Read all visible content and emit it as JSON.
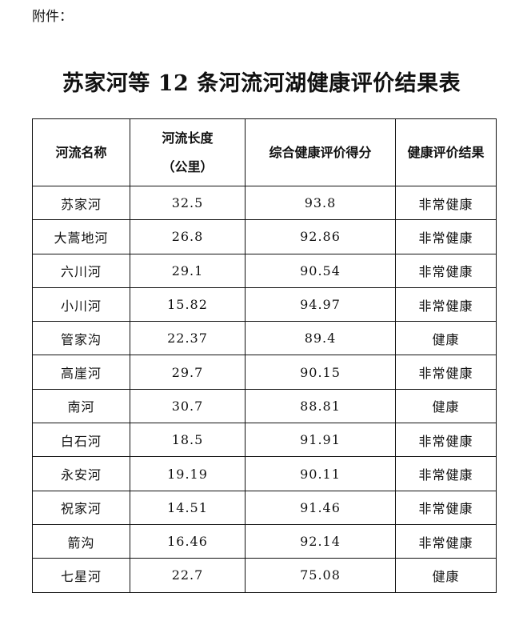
{
  "attachment_label": "附件：",
  "title": "苏家河等 12 条河流河湖健康评价结果表",
  "table": {
    "headers": [
      "河流名称",
      "河流长度",
      "（公里）",
      "综合健康评价得分",
      "健康评价结果"
    ],
    "rows": [
      [
        "苏家河",
        "32.5",
        "93.8",
        "非常健康"
      ],
      [
        "大蒿地河",
        "26.8",
        "92.86",
        "非常健康"
      ],
      [
        "六川河",
        "29.1",
        "90.54",
        "非常健康"
      ],
      [
        "小川河",
        "15.82",
        "94.97",
        "非常健康"
      ],
      [
        "管家沟",
        "22.37",
        "89.4",
        "健康"
      ],
      [
        "高崖河",
        "29.7",
        "90.15",
        "非常健康"
      ],
      [
        "南河",
        "30.7",
        "88.81",
        "健康"
      ],
      [
        "白石河",
        "18.5",
        "91.91",
        "非常健康"
      ],
      [
        "永安河",
        "19.19",
        "90.11",
        "非常健康"
      ],
      [
        "祝家河",
        "14.51",
        "91.46",
        "非常健康"
      ],
      [
        "箭沟",
        "16.46",
        "92.14",
        "非常健康"
      ],
      [
        "七星河",
        "22.7",
        "75.08",
        "健康"
      ]
    ]
  }
}
